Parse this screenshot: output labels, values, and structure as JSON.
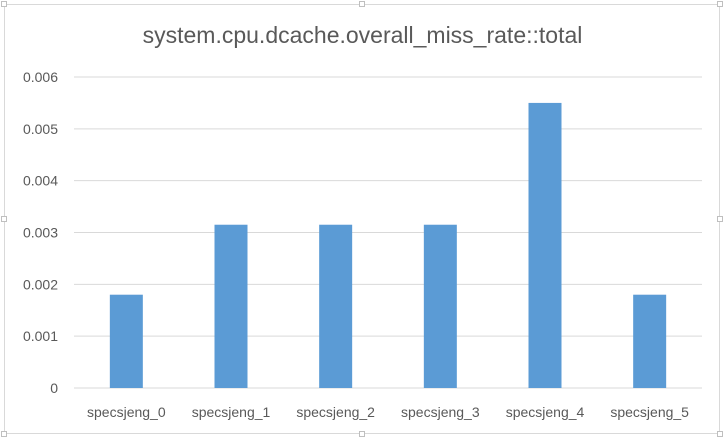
{
  "chart_data": {
    "type": "bar",
    "title": "system.cpu.dcache.overall_miss_rate::total",
    "xlabel": "",
    "ylabel": "",
    "categories": [
      "specsjeng_0",
      "specsjeng_1",
      "specsjeng_2",
      "specsjeng_3",
      "specsjeng_4",
      "specsjeng_5"
    ],
    "values": [
      0.0018,
      0.00315,
      0.00315,
      0.00315,
      0.0055,
      0.0018
    ],
    "ylim": [
      0,
      0.006
    ],
    "yticks": [
      "0",
      "0.001",
      "0.002",
      "0.003",
      "0.004",
      "0.005",
      "0.006"
    ],
    "grid": true,
    "legend": "none",
    "colors": {
      "bar": "#5b9bd5",
      "grid": "#d9d9d9",
      "text": "#595959"
    }
  }
}
